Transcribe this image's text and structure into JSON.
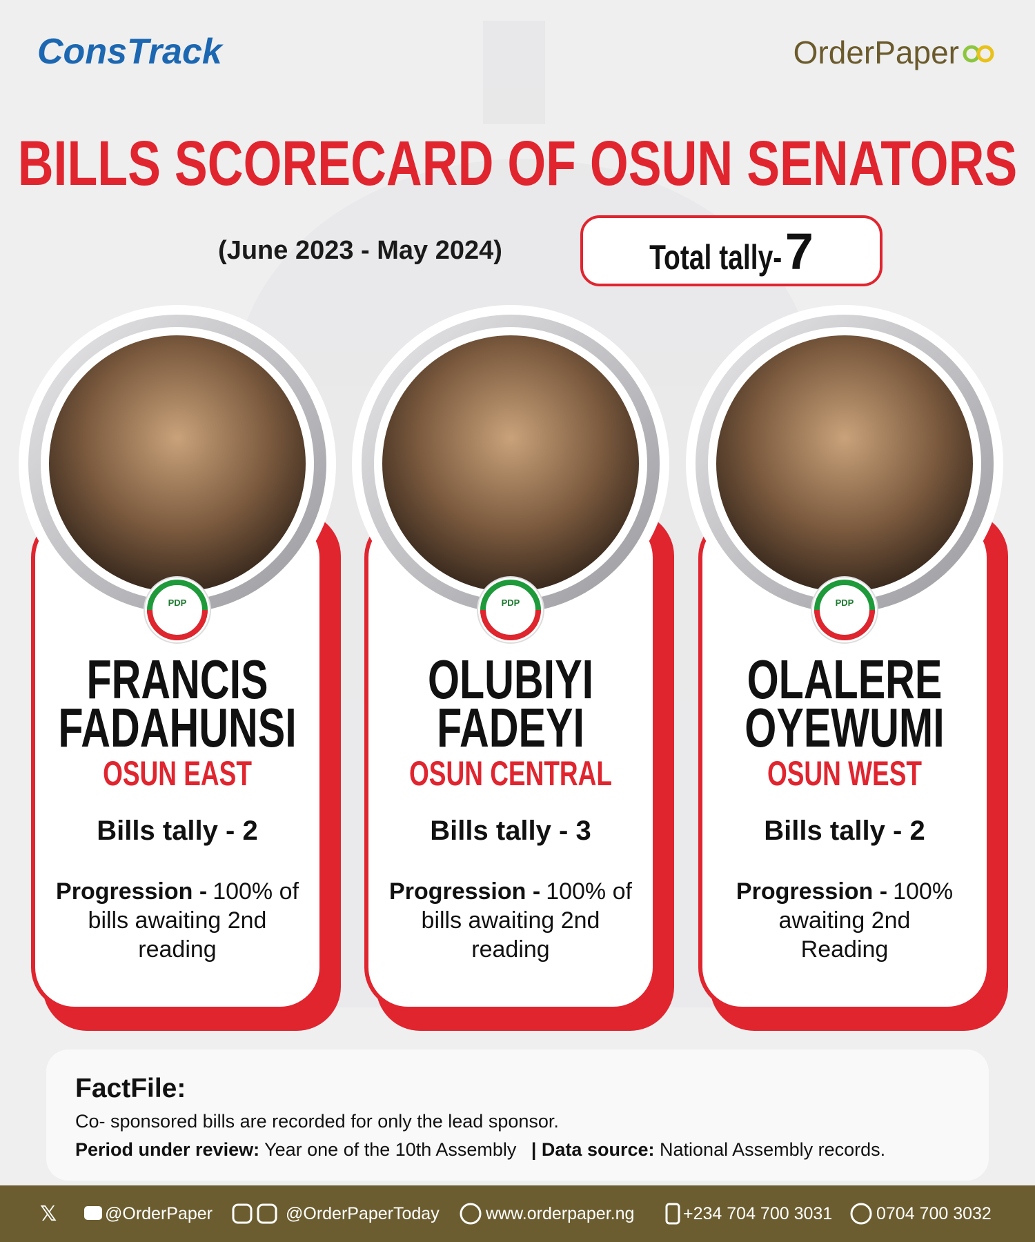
{
  "header": {
    "logo_left": "ConsTrack",
    "logo_right": "OrderPaper",
    "title": "BILLS SCORECARD OF OSUN SENATORS",
    "period": "(June 2023 - May 2024)",
    "total_label": "Total tally-",
    "total_value": "7"
  },
  "senators": [
    {
      "first_name": "FRANCIS",
      "last_name": "FADAHUNSI",
      "district": "OSUN EAST",
      "party": "PDP",
      "bills_tally": "Bills tally - 2",
      "progression_label": "Progression -",
      "progression_lines": [
        "100% of",
        "bills awaiting 2nd",
        "reading"
      ]
    },
    {
      "first_name": "OLUBIYI",
      "last_name": "FADEYI",
      "district": "OSUN CENTRAL",
      "party": "PDP",
      "bills_tally": "Bills tally - 3",
      "progression_label": "Progression -",
      "progression_lines": [
        "100% of",
        "bills awaiting 2nd",
        "reading"
      ]
    },
    {
      "first_name": "OLALERE",
      "last_name": "OYEWUMI",
      "district": "OSUN WEST",
      "party": "PDP",
      "bills_tally": "Bills tally - 2",
      "progression_label": "Progression -",
      "progression_lines": [
        "100%",
        "awaiting 2nd",
        "Reading"
      ]
    }
  ],
  "factfile": {
    "title": "FactFile:",
    "note": "Co- sponsored bills are recorded for only the lead sponsor.",
    "period_label": "Period under review:",
    "period_text": "Year one of the 10th Assembly",
    "source_label": "| Data source:",
    "source_text": "National Assembly records."
  },
  "footer": {
    "x_handle": "@OrderPaper",
    "threads_handle": "@OrderPaperToday",
    "website": "www.orderpaper.ng",
    "phone": "+234 704 700 3031",
    "whatsapp": "0704 700 3032"
  }
}
